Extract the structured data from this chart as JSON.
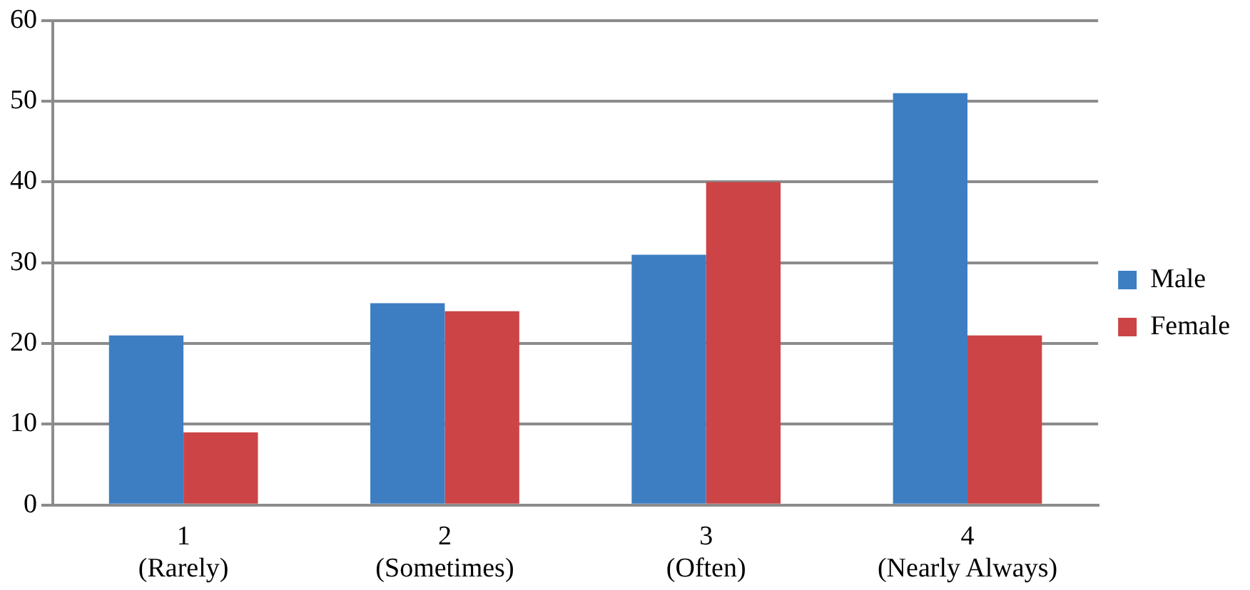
{
  "chart_data": {
    "type": "bar",
    "categories": [
      "1\n(Rarely)",
      "2\n(Sometimes)",
      "3\n(Often)",
      "4\n(Nearly Always)"
    ],
    "series": [
      {
        "name": "Male",
        "color": "#3d7ec3",
        "values": [
          21,
          25,
          31,
          51
        ]
      },
      {
        "name": "Female",
        "color": "#cc4446",
        "values": [
          9,
          24,
          40,
          21
        ]
      }
    ],
    "ylim": [
      0,
      60
    ],
    "yticks": [
      0,
      10,
      20,
      30,
      40,
      50,
      60
    ],
    "grid": "y",
    "legend": "right"
  }
}
